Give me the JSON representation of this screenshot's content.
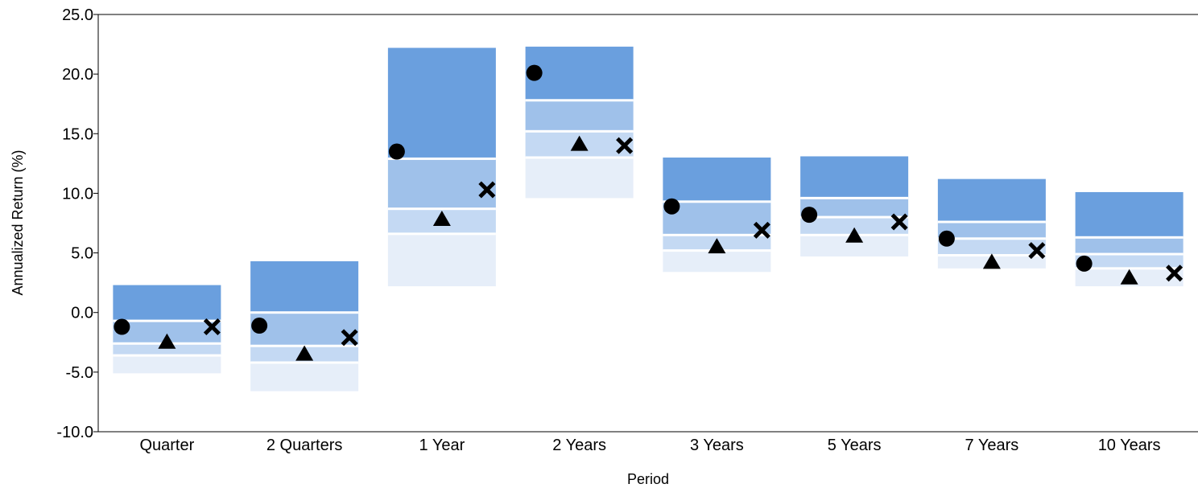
{
  "chart_data": {
    "type": "floating-bar",
    "title": "",
    "xlabel": "Period",
    "ylabel": "Annualized Return (%)",
    "ylim": [
      -10,
      25
    ],
    "yticks": [
      25,
      20,
      15,
      10,
      5,
      0,
      -5,
      -10
    ],
    "ytick_labels": [
      "25.0",
      "20.0",
      "15.0",
      "10.0",
      "5.0",
      "0.0",
      "-5.0",
      "-10.0"
    ],
    "categories": [
      "Quarter",
      "2 Quarters",
      "1 Year",
      "2 Years",
      "3 Years",
      "5 Years",
      "7 Years",
      "10 Years"
    ],
    "grid": false,
    "band_colors": [
      "#6a9fde",
      "#9fc1ea",
      "#c4d9f3",
      "#e6eef9"
    ],
    "marker_color": "#000000",
    "quartile_bands": [
      [
        2.3,
        -0.7,
        -2.6,
        -3.6,
        -5.1
      ],
      [
        4.3,
        0.0,
        -2.8,
        -4.2,
        -6.6
      ],
      [
        22.2,
        12.9,
        8.7,
        6.6,
        2.2
      ],
      [
        22.3,
        17.8,
        15.2,
        13.0,
        9.6
      ],
      [
        13.0,
        9.3,
        6.5,
        5.2,
        3.4
      ],
      [
        13.1,
        9.6,
        8.0,
        6.5,
        4.7
      ],
      [
        11.2,
        7.6,
        6.2,
        4.8,
        3.7
      ],
      [
        10.1,
        6.3,
        4.9,
        3.7,
        2.2
      ]
    ],
    "series": [
      {
        "marker": "circle",
        "values": [
          -1.2,
          -1.1,
          13.5,
          20.1,
          8.9,
          8.2,
          6.2,
          4.1
        ]
      },
      {
        "marker": "triangle",
        "values": [
          -2.5,
          -3.5,
          7.8,
          14.1,
          5.5,
          6.4,
          4.2,
          2.9
        ]
      },
      {
        "marker": "x",
        "values": [
          -1.2,
          -2.1,
          10.3,
          14.0,
          6.9,
          7.6,
          5.2,
          3.3
        ]
      }
    ]
  }
}
